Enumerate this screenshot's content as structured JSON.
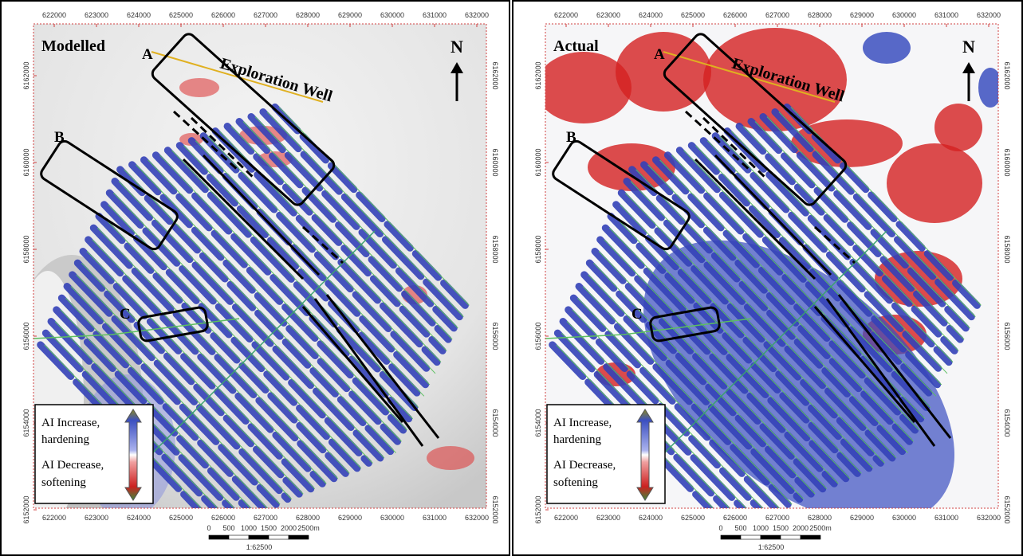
{
  "panels": [
    {
      "title": "Modelled",
      "labels": [
        "A",
        "B",
        "C"
      ],
      "well_label": "Exploration Well",
      "north": "N"
    },
    {
      "title": "Actual",
      "labels": [
        "A",
        "B",
        "C"
      ],
      "well_label": "Exploration Well",
      "north": "N"
    }
  ],
  "x_ticks": [
    622000,
    623000,
    624000,
    625000,
    626000,
    627000,
    628000,
    629000,
    630000,
    631000,
    632000
  ],
  "y_ticks": [
    6162000,
    6160000,
    6158000,
    6156000,
    6154000,
    6152000
  ],
  "legend": {
    "increase": [
      "AI Increase,",
      "hardening"
    ],
    "decrease": [
      "AI Decrease,",
      "softening"
    ]
  },
  "scale_bar": {
    "labels": [
      "0",
      "500",
      "1000",
      "1500",
      "2000",
      "2500m"
    ],
    "ratio": "1:62500"
  }
}
